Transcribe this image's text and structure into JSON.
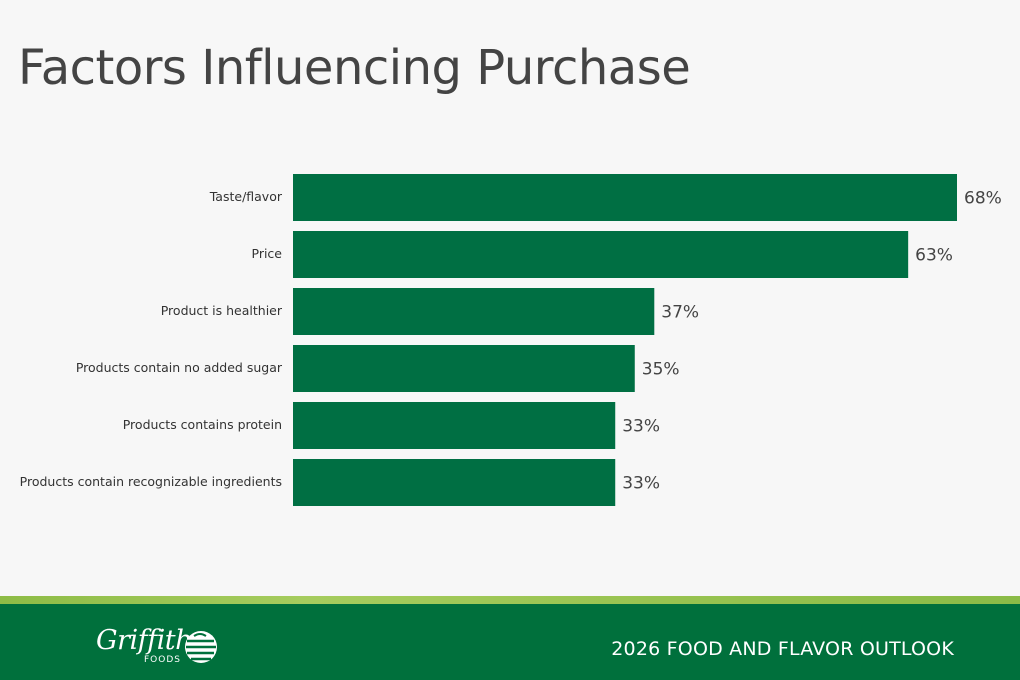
{
  "page": {
    "footer_text": "2026 FOOD AND FLAVOR OUTLOOK",
    "logo_text": "Griffith",
    "logo_subtext": "FOODS",
    "colors": {
      "bar": "#006f43",
      "footer_band": "#00703c",
      "footer_stripe": "#9ac452",
      "title": "#444444"
    }
  },
  "chart_data": {
    "type": "bar",
    "orientation": "horizontal",
    "title": "Factors Influencing Purchase",
    "categories": [
      "Taste/flavor",
      "Price",
      "Product is healthier",
      "Products contain no added sugar",
      "Products contains protein",
      "Products contain recognizable ingredients"
    ],
    "values": [
      68,
      63,
      37,
      35,
      33,
      33
    ],
    "value_labels": [
      "68%",
      "63%",
      "37%",
      "35%",
      "33%",
      "33%"
    ],
    "xlim": [
      0,
      68
    ],
    "grid": false,
    "legend": "none"
  }
}
